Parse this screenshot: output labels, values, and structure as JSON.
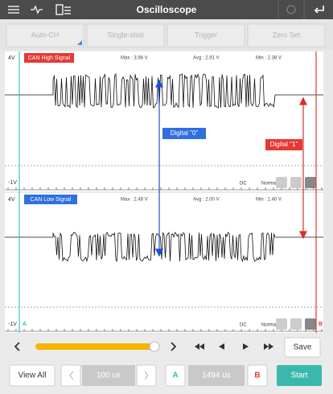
{
  "header": {
    "title": "Oscilloscope"
  },
  "toolbar": {
    "buttons": [
      "Auto-CH",
      "Single-shot",
      "Trigger",
      "Zero Set"
    ]
  },
  "panels": [
    {
      "ymax": "4V",
      "name": "CAN High Signal",
      "max": "Max : 3.56 V",
      "avg": "Avg : 2.91 V",
      "min": "Min : 2.38 V",
      "ymin": "-1V",
      "coupling": "DC",
      "mode": "Normal"
    },
    {
      "ymax": "4V",
      "name": "CAN Low Signal",
      "max": "Max : 2.48 V",
      "avg": "Avg : 2.00 V",
      "min": "Min : 1.40 V",
      "ymin": "-1V",
      "cursor_a": "A",
      "coupling": "DC",
      "mode": "Normal",
      "cursor_b": "B"
    }
  ],
  "annotations": {
    "digital_0": "Digital \"0\"",
    "digital_1": "Digital \"1\""
  },
  "controls": {
    "save": "Save",
    "view_all": "View All",
    "time_base": "100 us",
    "cursor_a": "A",
    "cursor_time": "1494 us",
    "cursor_b": "B",
    "start": "Start"
  }
}
